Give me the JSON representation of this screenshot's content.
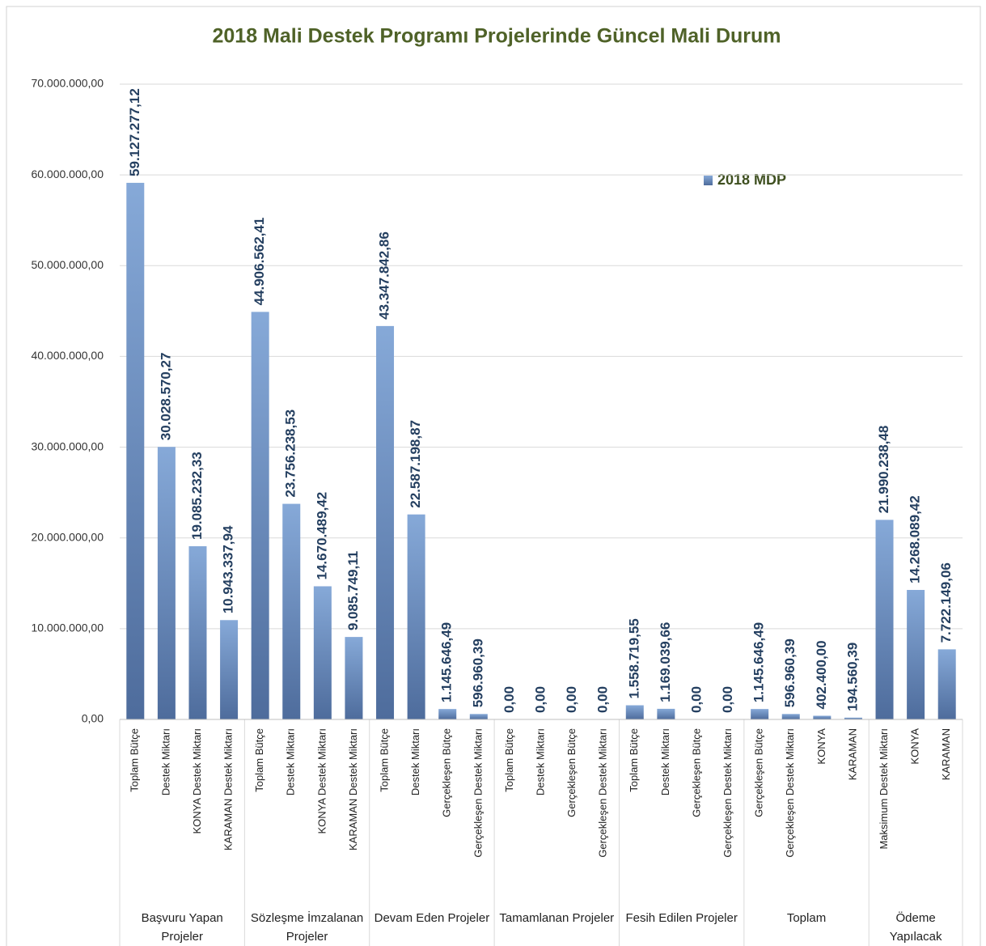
{
  "chart_data": {
    "type": "bar",
    "title": "2018 Mali Destek Programı Projelerinde Güncel Mali Durum",
    "series": [
      {
        "name": "2018 MDP",
        "color": "#4e6c9c"
      }
    ],
    "ylim": [
      0,
      70000000
    ],
    "yticks": [
      {
        "value": 0,
        "label": "0,00"
      },
      {
        "value": 10000000,
        "label": "10.000.000,00"
      },
      {
        "value": 20000000,
        "label": "20.000.000,00"
      },
      {
        "value": 30000000,
        "label": "30.000.000,00"
      },
      {
        "value": 40000000,
        "label": "40.000.000,00"
      },
      {
        "value": 50000000,
        "label": "50.000.000,00"
      },
      {
        "value": 60000000,
        "label": "60.000.000,00"
      },
      {
        "value": 70000000,
        "label": "70.000.000,00"
      }
    ],
    "grid": true,
    "groups": [
      {
        "name": "Başvuru Yapan Projeler",
        "categories": [
          "Toplam Bütçe",
          "Destek Miktarı",
          "KONYA Destek Miktarı",
          "KARAMAN Destek Miktarı"
        ],
        "values": [
          59127277.12,
          30028570.27,
          19085232.33,
          10943337.94
        ],
        "value_labels": [
          "59.127.277,12",
          "30.028.570,27",
          "19.085.232,33",
          "10.943.337,94"
        ]
      },
      {
        "name": "Sözleşme İmzalanan Projeler",
        "categories": [
          "Toplam Bütçe",
          "Destek Miktarı",
          "KONYA Destek Miktarı",
          "KARAMAN Destek Miktarı"
        ],
        "values": [
          44906562.41,
          23756238.53,
          14670489.42,
          9085749.11
        ],
        "value_labels": [
          "44.906.562,41",
          "23.756.238,53",
          "14.670.489,42",
          "9.085.749,11"
        ]
      },
      {
        "name": "Devam Eden Projeler",
        "categories": [
          "Toplam Bütçe",
          "Destek Miktarı",
          "Gerçekleşen Bütçe",
          "Gerçekleşen Destek Miktarı"
        ],
        "values": [
          43347842.86,
          22587198.87,
          1145646.49,
          596960.39
        ],
        "value_labels": [
          "43.347.842,86",
          "22.587.198,87",
          "1.145.646,49",
          "596.960,39"
        ]
      },
      {
        "name": "Tamamlanan Projeler",
        "categories": [
          "Toplam Bütçe",
          "Destek Miktarı",
          "Gerçekleşen Bütçe",
          "Gerçekleşen Destek Miktarı"
        ],
        "values": [
          0,
          0,
          0,
          0
        ],
        "value_labels": [
          "0,00",
          "0,00",
          "0,00",
          "0,00"
        ]
      },
      {
        "name": "Fesih Edilen Projeler",
        "categories": [
          "Toplam Bütçe",
          "Destek Miktarı",
          "Gerçekleşen Bütçe",
          "Gerçekleşen Destek Miktarı"
        ],
        "values": [
          1558719.55,
          1169039.66,
          0,
          0
        ],
        "value_labels": [
          "1.558.719,55",
          "1.169.039,66",
          "0,00",
          "0,00"
        ]
      },
      {
        "name": "Toplam",
        "categories": [
          "Gerçekleşen Bütçe",
          "Gerçekleşen Destek Miktarı",
          "KONYA",
          "KARAMAN"
        ],
        "values": [
          1145646.49,
          596960.39,
          402400,
          194560.39
        ],
        "value_labels": [
          "1.145.646,49",
          "596.960,39",
          "402.400,00",
          "194.560,39"
        ]
      },
      {
        "name": "Ödeme Yapılacak",
        "categories": [
          "Maksimum Destek Miktarı",
          "KONYA",
          "KARAMAN"
        ],
        "values": [
          21990238.48,
          14268089.42,
          7722149.06
        ],
        "value_labels": [
          "21.990.238,48",
          "14.268.089,42",
          "7.722.149,06"
        ]
      }
    ]
  }
}
